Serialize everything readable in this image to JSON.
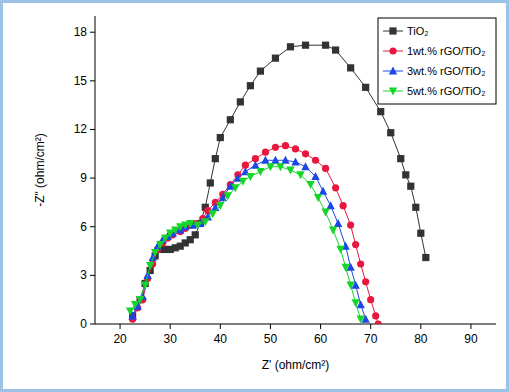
{
  "chart_data": {
    "type": "line",
    "x_label": "Z' (ohm/cm²)",
    "y_label": "-Z\" (ohm/cm²)",
    "xlim": [
      15,
      95
    ],
    "xticks": [
      20,
      30,
      40,
      50,
      60,
      70,
      80,
      90
    ],
    "ylim": [
      0,
      19
    ],
    "yticks": [
      0,
      3,
      6,
      9,
      12,
      15,
      18
    ],
    "legend": "upper right",
    "series": [
      {
        "name": "TiO₂",
        "color": "#333333",
        "marker": "square",
        "x": [
          22.5,
          24,
          25,
          26,
          27,
          28,
          29,
          30,
          31,
          32,
          33,
          34,
          35,
          36,
          37,
          38,
          39,
          40,
          42,
          44,
          46,
          48,
          51,
          54,
          57,
          61,
          63,
          66,
          69,
          72,
          74,
          76,
          77,
          78,
          79,
          80,
          81
        ],
        "values": [
          0.5,
          1.5,
          2.5,
          3.3,
          4.2,
          4.6,
          4.6,
          4.6,
          4.7,
          4.8,
          5.0,
          5.2,
          5.5,
          6.2,
          7.2,
          8.7,
          10.2,
          11.5,
          12.6,
          13.7,
          14.7,
          15.6,
          16.4,
          17.1,
          17.2,
          17.2,
          16.9,
          15.8,
          14.6,
          13.1,
          11.8,
          10.2,
          9.2,
          8.5,
          7.2,
          5.6,
          4.1
        ]
      },
      {
        "name": "1wt.% rGO/TiO₂",
        "color": "#e8173f",
        "marker": "circle",
        "x": [
          22.5,
          23.5,
          24.5,
          25.5,
          26.5,
          27.5,
          28.5,
          29.5,
          30.5,
          32,
          33,
          34,
          35,
          36.5,
          37.5,
          39,
          40.5,
          42,
          43.5,
          45,
          47,
          49,
          51,
          53,
          55,
          57,
          59,
          61,
          63,
          64.5,
          66,
          67,
          68,
          69,
          70,
          71,
          71.5
        ],
        "values": [
          0.3,
          1,
          1.5,
          2.8,
          3.7,
          4.6,
          5,
          5.3,
          5.5,
          5.7,
          5.9,
          6.1,
          6.2,
          6.5,
          7,
          7.5,
          8,
          8.6,
          9.2,
          9.8,
          10.2,
          10.6,
          10.9,
          11,
          10.8,
          10.5,
          10.1,
          9.6,
          8.4,
          7.3,
          6.1,
          4.9,
          3.7,
          2.6,
          1.5,
          0.5,
          0
        ]
      },
      {
        "name": "3wt.% rGO/TiO₂",
        "color": "#1a47e6",
        "marker": "triangle",
        "x": [
          22.5,
          23.5,
          24.5,
          25.5,
          26.5,
          27.5,
          28.5,
          29.5,
          30.5,
          32,
          33,
          34.5,
          36,
          37.5,
          39,
          40.5,
          42,
          43.5,
          45,
          47,
          49,
          51,
          53,
          55,
          57,
          59,
          60.5,
          62,
          63.5,
          65,
          66,
          67,
          68,
          69
        ],
        "values": [
          0.5,
          1.1,
          1.7,
          3,
          4.1,
          4.8,
          5.2,
          5.4,
          5.6,
          5.8,
          6,
          6.1,
          6.2,
          6.6,
          7.2,
          7.8,
          8.5,
          9,
          9.4,
          9.8,
          10.1,
          10.1,
          10.1,
          10,
          9.7,
          9.1,
          8.2,
          7.3,
          6.2,
          4.8,
          3.5,
          2.4,
          1.2,
          0.3
        ]
      },
      {
        "name": "5wt.% rGO/TiO₂",
        "color": "#14d62a",
        "marker": "triangle_down",
        "x": [
          22,
          23,
          24,
          25,
          26,
          27,
          28,
          29,
          30,
          31,
          32,
          33,
          34,
          35.5,
          37,
          38.5,
          40,
          41.5,
          43,
          44.5,
          46,
          48,
          50,
          52,
          54,
          56,
          58,
          59.5,
          61,
          62.5,
          64,
          65,
          66,
          67,
          68
        ],
        "values": [
          0.8,
          1.2,
          1.5,
          2.4,
          3.6,
          4.4,
          4.9,
          5.3,
          5.6,
          5.8,
          6,
          6.1,
          6.2,
          6.1,
          6.3,
          6.8,
          7.3,
          7.9,
          8.4,
          8.8,
          9.1,
          9.4,
          9.7,
          9.7,
          9.5,
          9.2,
          8.6,
          7.8,
          6.9,
          5.8,
          4.6,
          3.5,
          2.4,
          1.3,
          0.3
        ]
      }
    ]
  }
}
